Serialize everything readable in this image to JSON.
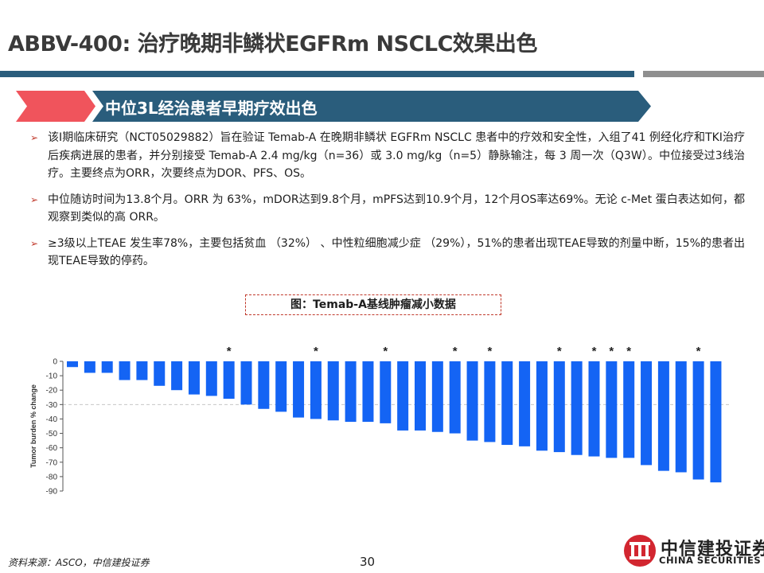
{
  "header": {
    "title": "ABBV-400: 治疗晚期非鳞状EGFRm NSCLC效果出色"
  },
  "banner": {
    "text": "中位3L经治患者早期疗效出色"
  },
  "bullets": [
    "该I期临床研究（NCT05029882）旨在验证 Temab-A 在晚期非鳞状 EGFRm NSCLC 患者中的疗效和安全性，入组了41 例经化疗和TKI治疗后疾病进展的患者，并分别接受 Temab-A 2.4 mg/kg（n=36）或 3.0 mg/kg（n=5）静脉输注，每 3 周一次（Q3W）。中位接受过3线治疗。主要终点为ORR，次要终点为DOR、PFS、OS。",
    "中位随访时间为13.8个月。ORR 为 63%，mDOR达到9.8个月，mPFS达到10.9个月，12个月OS率达69%。无论 c-Met 蛋白表达如何，都观察到类似的高 ORR。",
    "≥3级以上TEAE 发生率78%，主要包括贫血 （32%） 、中性粒细胞减少症 （29%），51%的患者出现TEAE导致的剂量中断，15%的患者出现TEAE导致的停药。"
  ],
  "figure_caption": "图：Temab-A基线肿瘤减小数据",
  "colors": {
    "bar": "#1464f4",
    "accent_red": "#f0545c",
    "banner_teal": "#2a5d7c",
    "reference_line": "#c8c8c8"
  },
  "chart_data": {
    "type": "bar",
    "ylabel": "Tumor burden % change",
    "ylim": [
      -90,
      0
    ],
    "yticks": [
      0,
      -10,
      -20,
      -30,
      -40,
      -50,
      -60,
      -70,
      -80,
      -90
    ],
    "reference_line": -30,
    "marker_symbol": "*",
    "values": [
      -4,
      -8,
      -8,
      -13,
      -13,
      -17,
      -20,
      -23,
      -24,
      -26,
      -30,
      -33,
      -35,
      -39,
      -40,
      -41,
      -42,
      -42,
      -43,
      -48,
      -48,
      -49,
      -50,
      -55,
      -56,
      -58,
      -59,
      -62,
      -63,
      -65,
      -66,
      -67,
      -67,
      -72,
      -76,
      -77,
      -82,
      -84
    ],
    "asterisk_indices": [
      9,
      14,
      18,
      22,
      24,
      28,
      30,
      31,
      32,
      36
    ]
  },
  "footer": {
    "source": "资料来源：ASCO，中信建投证券",
    "page_number": "30",
    "logo_cn": "中信建投证券",
    "logo_en": "CHINA SECURITIES"
  }
}
